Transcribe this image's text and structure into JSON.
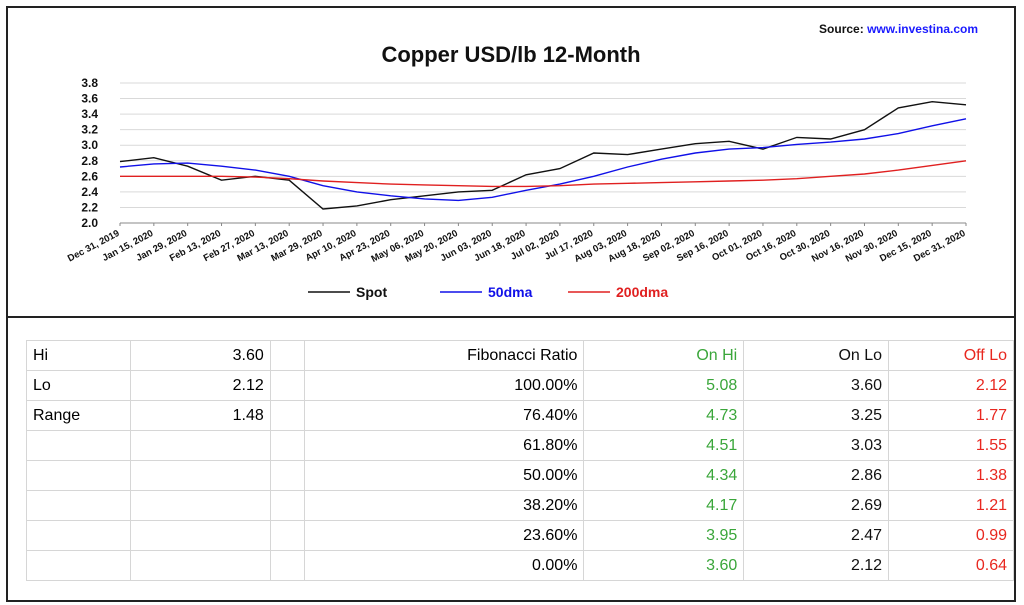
{
  "source": {
    "label": "Source:",
    "link": "www.investina.com"
  },
  "chart_data": {
    "type": "line",
    "title": "Copper USD/lb 12-Month",
    "xlabel": "",
    "ylabel": "",
    "ylim": [
      2.0,
      3.8
    ],
    "yticks": [
      "3.8",
      "3.6",
      "3.4",
      "3.2",
      "3.0",
      "2.8",
      "2.6",
      "2.4",
      "2.2",
      "2.0"
    ],
    "x": [
      "Dec 31, 2019",
      "Jan 15, 2020",
      "Jan 29, 2020",
      "Feb 13, 2020",
      "Feb 27, 2020",
      "Mar 13, 2020",
      "Mar 29, 2020",
      "Apr 10, 2020",
      "Apr 23, 2020",
      "May 06, 2020",
      "May 20, 2020",
      "Jun 03, 2020",
      "Jun 18, 2020",
      "Jul 02, 2020",
      "Jul 17, 2020",
      "Aug 03, 2020",
      "Aug 18, 2020",
      "Sep 02, 2020",
      "Sep 16, 2020",
      "Oct 01, 2020",
      "Oct 16, 2020",
      "Oct 30, 2020",
      "Nov 16, 2020",
      "Nov 30, 2020",
      "Dec 15, 2020",
      "Dec 31, 2020"
    ],
    "grid": true,
    "legend_position": "bottom",
    "series": [
      {
        "name": "Spot",
        "color": "#111111",
        "values": [
          2.79,
          2.84,
          2.73,
          2.55,
          2.6,
          2.55,
          2.18,
          2.22,
          2.3,
          2.35,
          2.4,
          2.42,
          2.62,
          2.7,
          2.9,
          2.88,
          2.95,
          3.02,
          3.05,
          2.95,
          3.1,
          3.08,
          3.2,
          3.48,
          3.56,
          3.52
        ]
      },
      {
        "name": "50dma",
        "color": "#1010e8",
        "values": [
          2.72,
          2.76,
          2.77,
          2.73,
          2.68,
          2.6,
          2.48,
          2.4,
          2.35,
          2.31,
          2.29,
          2.33,
          2.42,
          2.5,
          2.6,
          2.72,
          2.82,
          2.9,
          2.95,
          2.97,
          3.01,
          3.04,
          3.08,
          3.15,
          3.25,
          3.34
        ]
      },
      {
        "name": "200dma",
        "color": "#e02020",
        "values": [
          2.6,
          2.6,
          2.6,
          2.6,
          2.59,
          2.57,
          2.54,
          2.52,
          2.5,
          2.49,
          2.48,
          2.47,
          2.47,
          2.48,
          2.5,
          2.51,
          2.52,
          2.53,
          2.54,
          2.55,
          2.57,
          2.6,
          2.63,
          2.68,
          2.74,
          2.8
        ]
      }
    ]
  },
  "table": {
    "summary": [
      {
        "label": "Hi",
        "value": "3.60"
      },
      {
        "label": "Lo",
        "value": "2.12"
      },
      {
        "label": "Range",
        "value": "1.48"
      }
    ],
    "headers": {
      "ratio": "Fibonacci  Ratio",
      "on_hi": "On Hi",
      "on_lo": "On Lo",
      "off_lo": "Off Lo"
    },
    "rows": [
      {
        "ratio": "100.00%",
        "on_hi": "5.08",
        "on_lo": "3.60",
        "off_lo": "2.12"
      },
      {
        "ratio": "76.40%",
        "on_hi": "4.73",
        "on_lo": "3.25",
        "off_lo": "1.77"
      },
      {
        "ratio": "61.80%",
        "on_hi": "4.51",
        "on_lo": "3.03",
        "off_lo": "1.55"
      },
      {
        "ratio": "50.00%",
        "on_hi": "4.34",
        "on_lo": "2.86",
        "off_lo": "1.38"
      },
      {
        "ratio": "38.20%",
        "on_hi": "4.17",
        "on_lo": "2.69",
        "off_lo": "1.21"
      },
      {
        "ratio": "23.60%",
        "on_hi": "3.95",
        "on_lo": "2.47",
        "off_lo": "0.99"
      },
      {
        "ratio": "0.00%",
        "on_hi": "3.60",
        "on_lo": "2.12",
        "off_lo": "0.64"
      }
    ]
  }
}
